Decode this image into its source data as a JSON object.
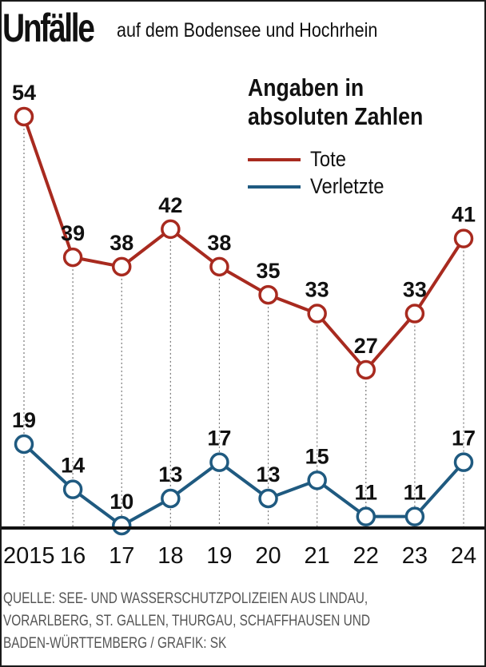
{
  "title": "Unfälle",
  "subtitle": "auf dem Bodensee und Hochrhein",
  "legend": {
    "title": "Angaben in\nabsoluten Zahlen",
    "items": [
      {
        "label": "Tote",
        "color": "#a82a1f"
      },
      {
        "label": "Verletzte",
        "color": "#1f5a80"
      }
    ]
  },
  "source_lines": [
    "QUELLE: SEE- UND WASSERSCHUTZPOLIZEIEN AUS LINDAU,",
    "VORARLBERG, ST. GALLEN, THURGAU, SCHAFFHAUSEN UND",
    "BADEN-WÜRTTEMBERG / GRAFIK: SK"
  ],
  "chart_data": {
    "type": "line",
    "categories": [
      "2015",
      "16",
      "17",
      "18",
      "19",
      "20",
      "21",
      "22",
      "23",
      "24"
    ],
    "series": [
      {
        "name": "Tote",
        "color": "#a82a1f",
        "values": [
          54,
          39,
          38,
          42,
          38,
          35,
          33,
          27,
          33,
          41
        ]
      },
      {
        "name": "Verletzte",
        "color": "#1f5a80",
        "values": [
          19,
          14,
          10,
          13,
          17,
          13,
          15,
          11,
          11,
          17
        ]
      }
    ],
    "grid": "dotted vertical lines at each year",
    "legend_position": "top-right"
  }
}
